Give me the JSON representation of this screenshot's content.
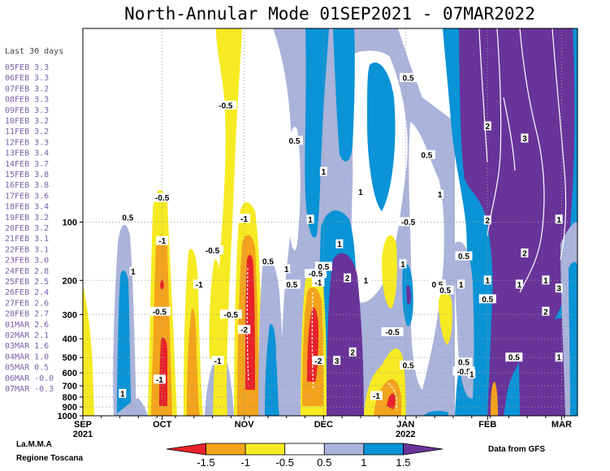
{
  "title": "North-Annular Mode 01SEP2021 - 07MAR2022",
  "side_panel": {
    "heading": "Last 30 days",
    "rows": [
      "05FEB 3.3",
      "06FEB 3.3",
      "07FEB 3.2",
      "08FEB 3.3",
      "09FEB 3.3",
      "10FEB 3.2",
      "11FEB 3.2",
      "12FEB 3.3",
      "13FEB 3.4",
      "14FEB 3.7",
      "15FEB 3.8",
      "16FEB 3.8",
      "17FEB 3.6",
      "18FEB 3.4",
      "19FEB 3.2",
      "20FEB 3.2",
      "21FEB 3.1",
      "22FEB 3.1",
      "23FEB 3.0",
      "24FEB 2.8",
      "25FEB 2.5",
      "26FEB 2.4",
      "27FEB 2.6",
      "28FEB 2.7",
      "01MAR 2.6",
      "02MAR 2.1",
      "03MAR 1.6",
      "04MAR 1.0",
      "05MAR 0.5",
      "06MAR -0.0",
      "07MAR -0.3"
    ]
  },
  "credits": {
    "org_line1": "La.M.M.A",
    "org_line2": "Regione Toscana",
    "source": "Data from GFS"
  },
  "colors": {
    "red": "#e8222a",
    "orange": "#f3a31c",
    "yellow": "#f6ea23",
    "white": "#ffffff",
    "lavender": "#aab3da",
    "blue": "#0a93d6",
    "purple": "#68349a"
  },
  "colorbar": {
    "labels": [
      "-1.5",
      "-1",
      "-0.5",
      "0.5",
      "1",
      "1.5"
    ],
    "colors": [
      "#e8222a",
      "#f3a31c",
      "#f6ea23",
      "#ffffff",
      "#aab3da",
      "#0a93d6",
      "#68349a"
    ]
  },
  "chart_data": {
    "type": "heatmap",
    "title": "North-Annular Mode 01SEP2021 - 07MAR2022",
    "x_range": [
      "2021-09-01",
      "2022-03-07"
    ],
    "x_ticks": [
      {
        "label": "SEP",
        "sub": "2021",
        "date": "2021-09-01"
      },
      {
        "label": "OCT",
        "sub": "",
        "date": "2021-10-01"
      },
      {
        "label": "NOV",
        "sub": "",
        "date": "2021-11-01"
      },
      {
        "label": "DEC",
        "sub": "",
        "date": "2021-12-01"
      },
      {
        "label": "JAN",
        "sub": "2022",
        "date": "2022-01-01"
      },
      {
        "label": "FEB",
        "sub": "",
        "date": "2022-02-01"
      },
      {
        "label": "MAR",
        "sub": "",
        "date": "2022-03-01"
      }
    ],
    "y_ticks": [
      "100",
      "200",
      "300",
      "400",
      "500",
      "600",
      "700",
      "800",
      "900",
      "1000"
    ],
    "y_scale": "log",
    "y_unit": "hPa",
    "levels": [
      -1.5,
      -1,
      -0.5,
      0.5,
      1,
      1.5
    ],
    "contour_labels": [
      {
        "text": "-0.5",
        "date": "2021-10-25",
        "p": 25
      },
      {
        "text": "0.5",
        "date": "2021-11-20",
        "p": 38
      },
      {
        "text": "0.5",
        "date": "2022-01-02",
        "p": 18
      },
      {
        "text": "0.5",
        "date": "2022-01-09",
        "p": 45
      },
      {
        "text": "1",
        "date": "2021-12-01",
        "p": 55
      },
      {
        "text": "1",
        "date": "2021-12-15",
        "p": 70
      },
      {
        "text": "1",
        "date": "2022-01-14",
        "p": 72
      },
      {
        "text": "2",
        "date": "2022-02-01",
        "p": 32
      },
      {
        "text": "3",
        "date": "2022-02-15",
        "p": 37
      },
      {
        "text": "-0.5",
        "date": "2021-10-01",
        "p": 75
      },
      {
        "text": "0.5",
        "date": "2021-09-18",
        "p": 95
      },
      {
        "text": "1",
        "date": "2021-11-26",
        "p": 97
      },
      {
        "text": "-0.5",
        "date": "2022-01-02",
        "p": 100
      },
      {
        "text": "1",
        "date": "2022-02-28",
        "p": 97
      },
      {
        "text": "2",
        "date": "2022-02-01",
        "p": 98
      },
      {
        "text": "-1",
        "date": "2021-11-01",
        "p": 96
      },
      {
        "text": "-1",
        "date": "2021-10-01",
        "p": 125
      },
      {
        "text": "-0.5",
        "date": "2021-10-20",
        "p": 140
      },
      {
        "text": "1",
        "date": "2021-12-07",
        "p": 130
      },
      {
        "text": "0.5",
        "date": "2021-11-10",
        "p": 160
      },
      {
        "text": "2",
        "date": "2022-02-15",
        "p": 145
      },
      {
        "text": "0.5",
        "date": "2022-01-23",
        "p": 150
      },
      {
        "text": "1",
        "date": "2021-09-20",
        "p": 180
      },
      {
        "text": "1",
        "date": "2021-11-17",
        "p": 175
      },
      {
        "text": "-0.5",
        "date": "2021-11-28",
        "p": 185
      },
      {
        "text": "0.5",
        "date": "2021-12-01",
        "p": 170
      },
      {
        "text": "-1",
        "date": "2021-11-29",
        "p": 205
      },
      {
        "text": "0.5",
        "date": "2021-11-19",
        "p": 210
      },
      {
        "text": "2",
        "date": "2021-12-10",
        "p": 195
      },
      {
        "text": "1",
        "date": "2021-12-17",
        "p": 200
      },
      {
        "text": "1",
        "date": "2021-12-31",
        "p": 165
      },
      {
        "text": "0.5",
        "date": "2022-01-13",
        "p": 210
      },
      {
        "text": "0.5",
        "date": "2022-01-16",
        "p": 225
      },
      {
        "text": "1",
        "date": "2022-01-22",
        "p": 210
      },
      {
        "text": "1",
        "date": "2022-02-01",
        "p": 200
      },
      {
        "text": "1",
        "date": "2022-02-13",
        "p": 210
      },
      {
        "text": "0.5",
        "date": "2022-02-01",
        "p": 250
      },
      {
        "text": "1",
        "date": "2022-02-23",
        "p": 200
      },
      {
        "text": "3",
        "date": "2022-02-28",
        "p": 220
      },
      {
        "text": "-1",
        "date": "2021-10-15",
        "p": 210
      },
      {
        "text": "-0.5",
        "date": "2021-09-30",
        "p": 290
      },
      {
        "text": "-0.5",
        "date": "2021-10-27",
        "p": 300
      },
      {
        "text": "-2",
        "date": "2021-11-01",
        "p": 360
      },
      {
        "text": "2",
        "date": "2022-02-23",
        "p": 290
      },
      {
        "text": "-0.5",
        "date": "2021-12-27",
        "p": 370
      },
      {
        "text": "2",
        "date": "2021-12-12",
        "p": 470
      },
      {
        "text": "-1",
        "date": "2021-10-22",
        "p": 520
      },
      {
        "text": "3",
        "date": "2021-12-06",
        "p": 520
      },
      {
        "text": "-2",
        "date": "2021-11-29",
        "p": 520
      },
      {
        "text": "0.5",
        "date": "2022-02-11",
        "p": 500
      },
      {
        "text": "1",
        "date": "2022-02-28",
        "p": 500
      },
      {
        "text": "0.5",
        "date": "2022-01-23",
        "p": 530
      },
      {
        "text": "0.5",
        "date": "2022-01-02",
        "p": 550
      },
      {
        "text": "-0.5",
        "date": "2022-01-23",
        "p": 590
      },
      {
        "text": "1",
        "date": "2022-01-26",
        "p": 610
      },
      {
        "text": "-1",
        "date": "2021-09-30",
        "p": 650
      },
      {
        "text": "1",
        "date": "2021-09-16",
        "p": 770
      },
      {
        "text": "-1",
        "date": "2021-12-21",
        "p": 790
      }
    ],
    "colorbar_labels": [
      "-1.5",
      "-1",
      "-0.5",
      "0.5",
      "1",
      "1.5"
    ]
  }
}
